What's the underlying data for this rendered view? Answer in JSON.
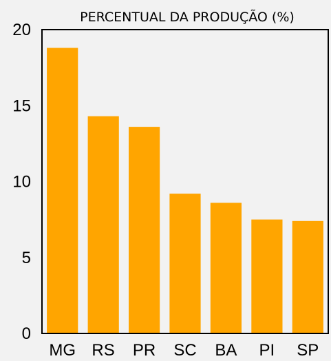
{
  "chart_data": {
    "type": "bar",
    "title": "PERCENTUAL DA PRODUÇÃO (%)",
    "xlabel": "",
    "ylabel": "",
    "categories": [
      "MG",
      "RS",
      "PR",
      "SC",
      "BA",
      "PI",
      "SP"
    ],
    "values": [
      18.8,
      14.3,
      13.6,
      9.2,
      8.6,
      7.5,
      7.4
    ],
    "ylim": [
      0,
      20
    ],
    "yticks": [
      "0",
      "5",
      "10",
      "15",
      "20"
    ],
    "grid": false,
    "legend": "none",
    "colors": {
      "bar": "#ffa500",
      "axis": "#000000",
      "background": "#f2f2f2"
    }
  }
}
